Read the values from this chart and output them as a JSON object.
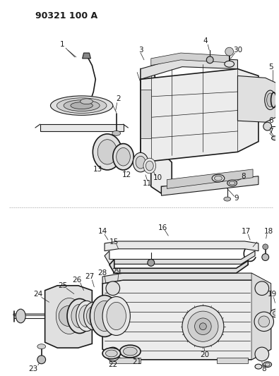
{
  "title": "90321 100 A",
  "bg_color": "#ffffff",
  "line_color": "#1a1a1a",
  "title_fontsize": 10,
  "label_fontsize": 7.5,
  "figsize": [
    3.95,
    5.33
  ],
  "dpi": 100
}
